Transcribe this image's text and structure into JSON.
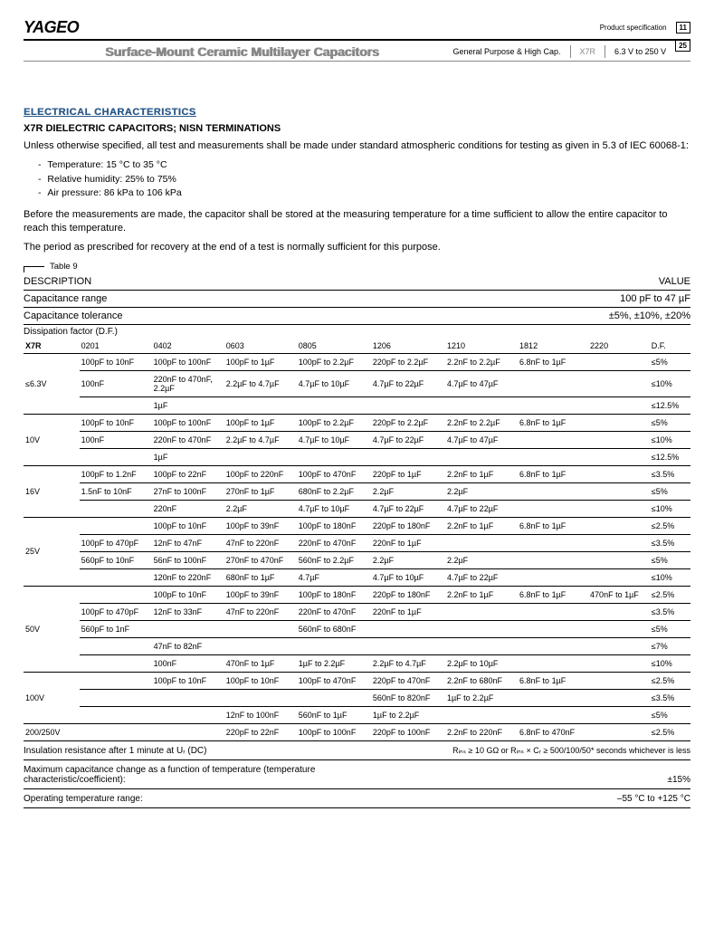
{
  "header": {
    "logo": "YAGEO",
    "prodspec": "Product specification",
    "page": "11",
    "total": "25"
  },
  "subheader": {
    "title": "Surface-Mount Ceramic Multilayer Capacitors",
    "gp": "General Purpose & High Cap.",
    "x7r": "X7R",
    "vrange": "6.3 V to 250 V"
  },
  "section_title": "ELECTRICAL CHARACTERISTICS",
  "sub_title": "X7R DIELECTRIC CAPACITORS; NISN TERMINATIONS",
  "intro": "Unless otherwise specified, all test and measurements shall be made under standard  atmospheric conditions for testing as given in 5.3 of IEC 60068-1:",
  "bullets": [
    "Temperature: 15 °C to 35 °C",
    "Relative humidity: 25% to 75%",
    "Air pressure: 86 kPa to 106 kPa"
  ],
  "para2": "Before the measurements are made, the capacitor shall be stored at the measuring temperature for a time sufficient to allow the entire capacitor to reach this temperature.",
  "para3": "The period as prescribed for recovery at the end of a test is normally sufficient for this purpose.",
  "table_label": "Table 9",
  "desc_hdr": {
    "l": "DESCRIPTION",
    "r": "VALUE"
  },
  "cap_range": {
    "l": "Capacitance range",
    "r": "100 pF to 47 µF"
  },
  "cap_tol": {
    "l": "Capacitance tolerance",
    "r": "±5%, ±10%, ±20%"
  },
  "diss": "Dissipation factor (D.F.)",
  "cols": [
    "X7R",
    "0201",
    "0402",
    "0603",
    "0805",
    "1206",
    "1210",
    "1812",
    "2220",
    "D.F."
  ],
  "groups": [
    {
      "v": "≤6.3V",
      "rows": [
        [
          "",
          "100pF to 10nF",
          "100pF to 100nF",
          "100pF to 1µF",
          "100pF to 2.2µF",
          "220pF to 2.2µF",
          "2.2nF to 2.2µF",
          "6.8nF to 1µF",
          "",
          "≤5%"
        ],
        [
          "",
          "100nF",
          "220nF to 470nF, 2.2µF",
          "2.2µF to 4.7µF",
          "4.7µF to 10µF",
          "4.7µF to 22µF",
          "4.7µF to 47µF",
          "",
          "",
          "≤10%"
        ],
        [
          "",
          "",
          "1µF",
          "",
          "",
          "",
          "",
          "",
          "",
          "≤12.5%"
        ]
      ]
    },
    {
      "v": "10V",
      "rows": [
        [
          "",
          "100pF to 10nF",
          "100pF to 100nF",
          "100pF to 1µF",
          "100pF to 2.2µF",
          "220pF to 2.2µF",
          "2.2nF to 2.2µF",
          "6.8nF to 1µF",
          "",
          "≤5%"
        ],
        [
          "",
          "100nF",
          "220nF to 470nF",
          "2.2µF to 4.7µF",
          "4.7µF to 10µF",
          "4.7µF to 22µF",
          "4.7µF to 47µF",
          "",
          "",
          "≤10%"
        ],
        [
          "",
          "",
          "1µF",
          "",
          "",
          "",
          "",
          "",
          "",
          "≤12.5%"
        ]
      ]
    },
    {
      "v": "16V",
      "rows": [
        [
          "",
          "100pF to 1.2nF",
          "100pF to 22nF",
          "100pF to 220nF",
          "100pF to 470nF",
          "220pF to 1µF",
          "2.2nF to 1µF",
          "6.8nF to 1µF",
          "",
          "≤3.5%"
        ],
        [
          "",
          "1.5nF to 10nF",
          "27nF to 100nF",
          "270nF to 1µF",
          "680nF to 2.2µF",
          "2.2µF",
          "2.2µF",
          "",
          "",
          "≤5%"
        ],
        [
          "",
          "",
          "220nF",
          "2.2µF",
          "4.7µF to 10µF",
          "4.7µF to 22µF",
          "4.7µF to 22µF",
          "",
          "",
          "≤10%"
        ]
      ]
    },
    {
      "v": "25V",
      "rows": [
        [
          "",
          "",
          "100pF to 10nF",
          "100pF to 39nF",
          "100pF to 180nF",
          "220pF to 180nF",
          "2.2nF to 1µF",
          "6.8nF to 1µF",
          "",
          "≤2.5%"
        ],
        [
          "",
          "100pF to 470pF",
          "12nF to 47nF",
          "47nF to 220nF",
          "220nF to 470nF",
          "220nF to 1µF",
          "",
          "",
          "",
          "≤3.5%"
        ],
        [
          "",
          "560pF to 10nF",
          "56nF to 100nF",
          "270nF to 470nF",
          "560nF to 2.2µF",
          "2.2µF",
          "2.2µF",
          "",
          "",
          "≤5%"
        ],
        [
          "",
          "",
          "120nF to 220nF",
          "680nF to 1µF",
          "4.7µF",
          "4.7µF to 10µF",
          "4.7µF to 22µF",
          "",
          "",
          "≤10%"
        ]
      ]
    },
    {
      "v": "50V",
      "rows": [
        [
          "",
          "",
          "100pF to 10nF",
          "100pF to 39nF",
          "100pF to 180nF",
          "220pF to 180nF",
          "2.2nF to 1µF",
          "6.8nF to 1µF",
          "470nF to 1µF",
          "≤2.5%"
        ],
        [
          "",
          "100pF to 470pF",
          "12nF to 33nF",
          "47nF to 220nF",
          "220nF to 470nF",
          "220nF to 1µF",
          "",
          "",
          "",
          "≤3.5%"
        ],
        [
          "",
          "560pF to 1nF",
          "",
          "",
          "560nF to 680nF",
          "",
          "",
          "",
          "",
          "≤5%"
        ],
        [
          "",
          "",
          "47nF to 82nF",
          "",
          "",
          "",
          "",
          "",
          "",
          "≤7%"
        ],
        [
          "",
          "",
          "100nF",
          "470nF to 1µF",
          "1µF to 2.2µF",
          "2.2µF to 4.7µF",
          "2.2µF to 10µF",
          "",
          "",
          "≤10%"
        ]
      ]
    },
    {
      "v": "100V",
      "rows": [
        [
          "",
          "",
          "100pF to 10nF",
          "100pF to 10nF",
          "100pF to 470nF",
          "220pF to 470nF",
          "2.2nF to 680nF",
          "6.8nF to 1µF",
          "",
          "≤2.5%"
        ],
        [
          "",
          "",
          "",
          "",
          "",
          "560nF to 820nF",
          "1µF to 2.2µF",
          "",
          "",
          "≤3.5%"
        ],
        [
          "",
          "",
          "",
          "12nF to 100nF",
          "560nF to 1µF",
          "1µF to 2.2µF",
          "",
          "",
          "",
          "≤5%"
        ]
      ]
    },
    {
      "v": "200/250V",
      "rows": [
        [
          "",
          "",
          "",
          "220pF to 22nF",
          "100pF to 100nF",
          "220pF to 100nF",
          "2.2nF to 220nF",
          "6.8nF to 470nF",
          "",
          "≤2.5%"
        ]
      ]
    }
  ],
  "foot": [
    {
      "l": "Insulation resistance after 1 minute at Uᵣ (DC)",
      "r": "Rᵢₙₛ ≥ 10 GΩ or Rᵢₙₛ × Cᵣ ≥ 500/100/50* seconds whichever is less"
    },
    {
      "l": "Maximum capacitance change as a function of temperature (temperature characteristic/coefficient):",
      "r": "±15%"
    },
    {
      "l": "Operating temperature range:",
      "r": "–55 °C to +125 °C"
    }
  ]
}
